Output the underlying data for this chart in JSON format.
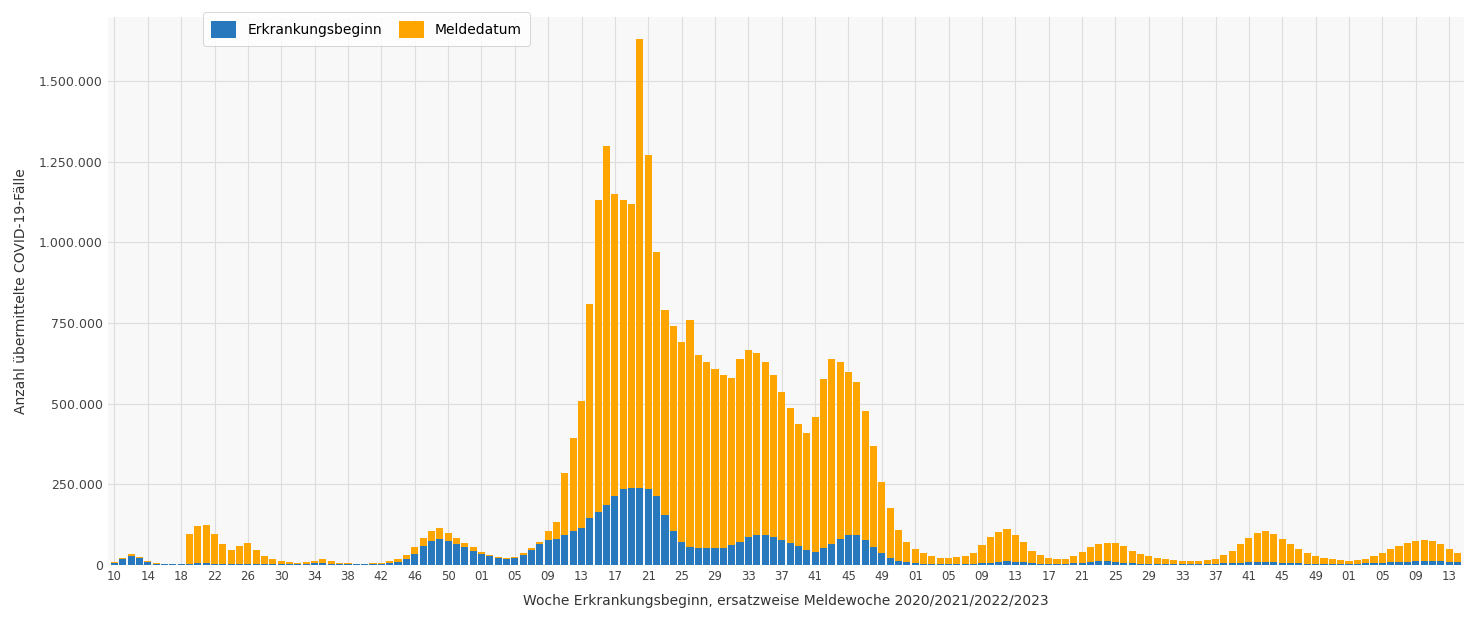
{
  "ylabel": "Anzahl übermittelte COVID-19-Fälle",
  "xlabel": "Woche Erkrankungsbeginn, ersatzweise Meldewoche 2020/2021/2022/2023",
  "color_blue": "#2878BE",
  "color_orange": "#FFA500",
  "background_color": "#FFFFFF",
  "grid_color": "#DDDDDD",
  "yticks": [
    0,
    250000,
    500000,
    750000,
    1000000,
    1250000,
    1500000
  ],
  "ytick_labels": [
    "0",
    "250.000",
    "500.000",
    "750.000",
    "1.000.000",
    "1.250.000",
    "1.500.000"
  ],
  "legend_erkrankungsbeginn": "Erkrankungsbeginn",
  "legend_meldedatum": "Meldedatum",
  "xtick_positions": [
    0,
    4,
    8,
    12,
    16,
    20,
    24,
    28,
    32,
    36,
    40,
    44,
    48,
    52,
    56,
    60,
    64,
    68,
    72,
    76,
    80,
    84,
    88,
    92,
    96,
    100,
    104,
    108,
    112,
    116,
    120,
    124,
    128,
    132,
    136,
    140,
    144,
    148,
    152,
    156,
    160
  ],
  "xtick_labels": [
    "10",
    "14",
    "18",
    "22",
    "26",
    "30",
    "34",
    "38",
    "42",
    "46",
    "50",
    "01",
    "05",
    "09",
    "13",
    "17",
    "21",
    "25",
    "29",
    "33",
    "37",
    "41",
    "45",
    "49",
    "01",
    "05",
    "09",
    "13",
    "17",
    "21",
    "25",
    "29",
    "33",
    "37",
    "41",
    "45",
    "49",
    "01",
    "05",
    "09",
    "13"
  ],
  "blue_values": [
    8000,
    18000,
    28000,
    22000,
    10000,
    5000,
    3000,
    3000,
    4000,
    5000,
    6000,
    6000,
    5000,
    4000,
    4000,
    4000,
    4000,
    4000,
    4000,
    4000,
    4000,
    4000,
    4000,
    5000,
    6000,
    8000,
    5000,
    4000,
    4000,
    4000,
    4000,
    4000,
    5000,
    7000,
    10000,
    18000,
    35000,
    60000,
    75000,
    80000,
    75000,
    65000,
    55000,
    45000,
    35000,
    28000,
    22000,
    20000,
    22000,
    32000,
    48000,
    65000,
    78000,
    82000,
    92000,
    105000,
    115000,
    145000,
    165000,
    185000,
    215000,
    235000,
    240000,
    240000,
    235000,
    215000,
    155000,
    105000,
    72000,
    57000,
    52000,
    52000,
    52000,
    52000,
    62000,
    72000,
    88000,
    92000,
    92000,
    88000,
    78000,
    68000,
    58000,
    47000,
    42000,
    52000,
    67000,
    82000,
    92000,
    92000,
    78000,
    57000,
    37000,
    22000,
    13000,
    9000,
    6000,
    4000,
    3000,
    3000,
    3000,
    3000,
    3000,
    4000,
    6000,
    8000,
    11000,
    13000,
    11000,
    9000,
    7000,
    5000,
    4000,
    4000,
    5000,
    6000,
    8000,
    10000,
    12000,
    12000,
    10000,
    8000,
    6000,
    5000,
    4000,
    4000,
    4000,
    4000,
    4000,
    4000,
    4000,
    4000,
    5000,
    6000,
    7000,
    8000,
    9000,
    10000,
    10000,
    9000,
    8000,
    7000,
    6000,
    5000,
    4000,
    4000,
    4000,
    4000,
    4000,
    5000,
    6000,
    7000,
    8000,
    9000,
    10000,
    11000,
    12000,
    13000,
    13000,
    12000,
    11000,
    10000
  ],
  "orange_values": [
    10000,
    22000,
    35000,
    25000,
    12000,
    6000,
    4000,
    4000,
    5000,
    95000,
    120000,
    125000,
    95000,
    65000,
    48000,
    58000,
    70000,
    48000,
    28000,
    18000,
    13000,
    10000,
    8000,
    10000,
    13000,
    20000,
    12000,
    8000,
    6000,
    5000,
    5000,
    6000,
    8000,
    12000,
    18000,
    30000,
    55000,
    85000,
    105000,
    115000,
    100000,
    85000,
    70000,
    55000,
    42000,
    32000,
    26000,
    23000,
    26000,
    37000,
    53000,
    72000,
    105000,
    135000,
    285000,
    395000,
    510000,
    810000,
    1130000,
    1300000,
    1150000,
    1130000,
    1120000,
    1630000,
    1270000,
    970000,
    790000,
    740000,
    690000,
    760000,
    650000,
    628000,
    608000,
    590000,
    580000,
    638000,
    668000,
    658000,
    628000,
    590000,
    538000,
    488000,
    438000,
    408000,
    458000,
    578000,
    638000,
    628000,
    598000,
    568000,
    478000,
    368000,
    258000,
    178000,
    108000,
    72000,
    50000,
    38000,
    28000,
    22000,
    22000,
    24000,
    28000,
    38000,
    63000,
    88000,
    103000,
    113000,
    92000,
    73000,
    43000,
    30000,
    22000,
    18000,
    20000,
    28000,
    40000,
    55000,
    65000,
    70000,
    68000,
    58000,
    45000,
    35000,
    28000,
    22000,
    18000,
    15000,
    13000,
    12000,
    13000,
    15000,
    20000,
    30000,
    45000,
    65000,
    85000,
    100000,
    105000,
    95000,
    80000,
    65000,
    50000,
    38000,
    28000,
    22000,
    18000,
    15000,
    13000,
    15000,
    20000,
    28000,
    38000,
    50000,
    60000,
    70000,
    75000,
    78000,
    75000,
    65000,
    50000,
    38000
  ]
}
